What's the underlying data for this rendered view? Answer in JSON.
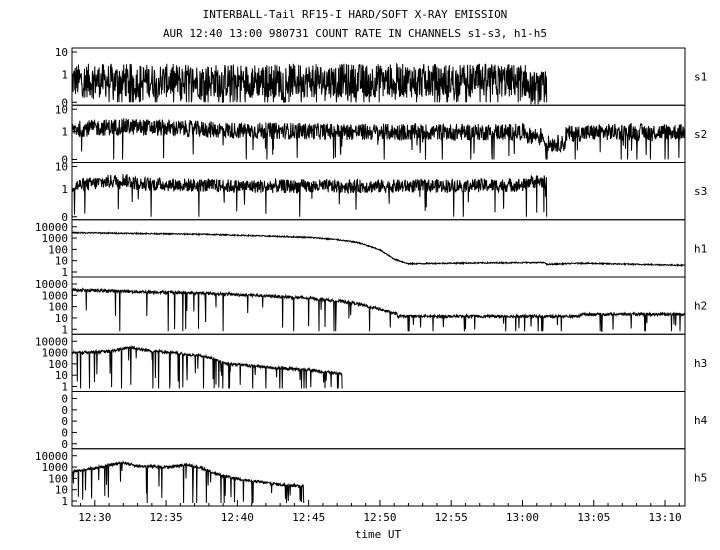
{
  "colors": {
    "background": "#ffffff",
    "ink": "#000000"
  },
  "chart_data": {
    "type": "line",
    "title": "INTERBALL-Tail RF15-I HARD/SOFT X-RAY EMISSION",
    "subtitle": "AUR 12:40 13:00 980731  COUNT RATE IN CHANNELS s1-s3, h1-h5",
    "xlabel": "time UT",
    "x_unit": "minutes after 12:00 UT",
    "xlim": [
      28.4,
      71.4
    ],
    "x_ticks": [
      {
        "v": 30,
        "label": "12:30"
      },
      {
        "v": 35,
        "label": "12:35"
      },
      {
        "v": 40,
        "label": "12:40"
      },
      {
        "v": 45,
        "label": "12:45"
      },
      {
        "v": 50,
        "label": "12:50"
      },
      {
        "v": 55,
        "label": "12:55"
      },
      {
        "v": 60,
        "label": "13:00"
      },
      {
        "v": 65,
        "label": "13:05"
      },
      {
        "v": 70,
        "label": "13:10"
      }
    ],
    "yscale": "log",
    "grid": false,
    "legend": "none",
    "panels": [
      {
        "name": "s1",
        "yticks": [
          "10",
          "1",
          "0"
        ],
        "series": [
          {
            "noise": 0.45,
            "dips": 0.09,
            "points": [
              [
                28.4,
                3.5
              ],
              [
                60.3,
                3.5
              ],
              [
                60.35,
                2.2
              ],
              [
                61.65,
                2.2
              ],
              [
                61.7,
                0
              ]
            ]
          }
        ]
      },
      {
        "name": "s2",
        "yticks": [
          "10",
          "1",
          "0"
        ],
        "series": [
          {
            "noise": 0.22,
            "dips": 0.03,
            "points": [
              [
                28.4,
                6
              ],
              [
                32,
                7
              ],
              [
                40,
                5.5
              ],
              [
                50,
                5
              ],
              [
                60.3,
                5
              ],
              [
                60.35,
                4
              ],
              [
                61.5,
                4
              ],
              [
                61.55,
                2.5
              ],
              [
                63,
                2.5
              ],
              [
                63.05,
                4.5
              ],
              [
                66,
                5
              ],
              [
                71.4,
                5
              ]
            ]
          }
        ]
      },
      {
        "name": "s3",
        "yticks": [
          "10",
          "1",
          "0"
        ],
        "series": [
          {
            "noise": 0.18,
            "dips": 0.02,
            "points": [
              [
                28.4,
                6
              ],
              [
                32,
                9
              ],
              [
                33,
                7
              ],
              [
                40,
                6
              ],
              [
                50,
                6
              ],
              [
                60.3,
                6.5
              ],
              [
                60.35,
                8
              ],
              [
                61.65,
                8
              ],
              [
                61.7,
                0
              ]
            ]
          }
        ]
      },
      {
        "name": "h1",
        "yticks": [
          "10000",
          "1000",
          "100",
          "10",
          "1"
        ],
        "series": [
          {
            "noise": 0.05,
            "dips": 0,
            "points": [
              [
                28.4,
                3500
              ],
              [
                33,
                3000
              ],
              [
                38,
                2500
              ],
              [
                42,
                1800
              ],
              [
                45,
                1400
              ],
              [
                47,
                900
              ],
              [
                48.5,
                500
              ],
              [
                50,
                120
              ],
              [
                51,
                20
              ],
              [
                52,
                8
              ],
              [
                55,
                9
              ],
              [
                60,
                10
              ],
              [
                61.6,
                10
              ],
              [
                61.7,
                7
              ],
              [
                64,
                9
              ],
              [
                66,
                8
              ],
              [
                71.4,
                6
              ]
            ]
          }
        ]
      },
      {
        "name": "h2",
        "yticks": [
          "10000",
          "1000",
          "100",
          "10",
          "1"
        ],
        "series": [
          {
            "noise": 0.12,
            "dips": 0.03,
            "points": [
              [
                28.4,
                3500
              ],
              [
                33,
                2500
              ],
              [
                38,
                1800
              ],
              [
                42,
                1100
              ],
              [
                45,
                700
              ],
              [
                48,
                300
              ],
              [
                50,
                80
              ],
              [
                51.2,
                30
              ],
              [
                51.25,
                20
              ],
              [
                64,
                20
              ],
              [
                64.05,
                30
              ],
              [
                71.4,
                30
              ]
            ]
          }
        ]
      },
      {
        "name": "h3",
        "yticks": [
          "10000",
          "1000",
          "100",
          "10",
          "1"
        ],
        "series": [
          {
            "noise": 0.12,
            "dips": 0.08,
            "points": [
              [
                28.4,
                1200
              ],
              [
                31,
                1500
              ],
              [
                32.5,
                3500
              ],
              [
                33.5,
                2000
              ],
              [
                36,
                1000
              ],
              [
                38,
                500
              ],
              [
                39,
                150
              ],
              [
                42,
                70
              ],
              [
                45,
                40
              ],
              [
                47.3,
                20
              ],
              [
                47.35,
                0
              ]
            ]
          }
        ]
      },
      {
        "name": "h4",
        "yticks": [
          "0",
          "0",
          "0",
          "0",
          "0"
        ],
        "series": []
      },
      {
        "name": "h5",
        "yticks": [
          "10000",
          "1000",
          "100",
          "10",
          "1"
        ],
        "series": [
          {
            "noise": 0.12,
            "dips": 0.06,
            "points": [
              [
                28.4,
                500
              ],
              [
                30,
                1000
              ],
              [
                32,
                3000
              ],
              [
                33,
                1500
              ],
              [
                35,
                1200
              ],
              [
                36.5,
                2000
              ],
              [
                37.5,
                1000
              ],
              [
                39,
                200
              ],
              [
                41,
                80
              ],
              [
                43,
                40
              ],
              [
                44.6,
                30
              ],
              [
                44.65,
                0
              ]
            ]
          }
        ]
      }
    ]
  }
}
